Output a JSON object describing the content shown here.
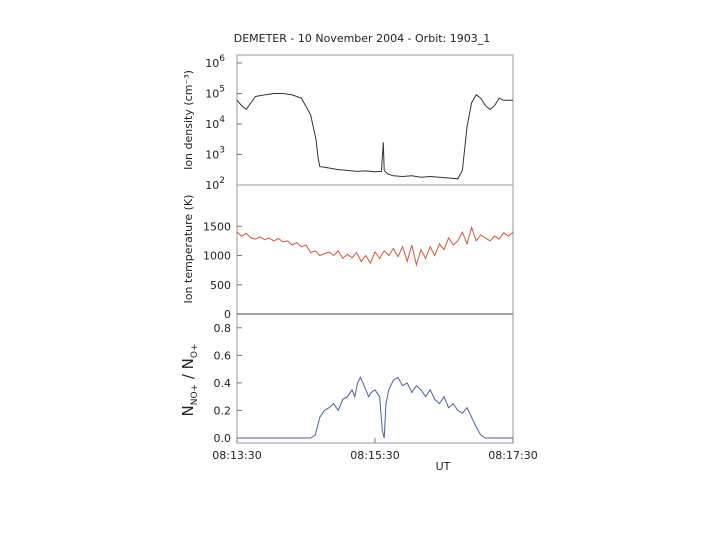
{
  "chart_data": [
    {
      "type": "line",
      "title": "DEMETER   - 10 November 2004 -   Orbit: 1903_1",
      "ylabel": "Ion density  (cm⁻³)",
      "yscale": "log",
      "ylim": [
        100,
        1000000
      ],
      "yticks": [
        {
          "value": 100,
          "base": "10",
          "exp": "2"
        },
        {
          "value": 1000,
          "base": "10",
          "exp": "3"
        },
        {
          "value": 10000,
          "base": "10",
          "exp": "4"
        },
        {
          "value": 100000,
          "base": "10",
          "exp": "5"
        },
        {
          "value": 1000000,
          "base": "10",
          "exp": "6"
        }
      ],
      "color": "#333333",
      "x": [
        0,
        5,
        10,
        20,
        30,
        40,
        50,
        60,
        70,
        80,
        86,
        88,
        90,
        95,
        100,
        110,
        120,
        130,
        140,
        150,
        157,
        159,
        160,
        162,
        164,
        170,
        180,
        190,
        200,
        210,
        220,
        230,
        240,
        245,
        250,
        255,
        260,
        265,
        270,
        275,
        280,
        285,
        290,
        300
      ],
      "y": [
        60000,
        40000,
        30000,
        80000,
        90000,
        100000,
        100000,
        90000,
        70000,
        20000,
        3000,
        800,
        400,
        380,
        360,
        320,
        300,
        280,
        290,
        270,
        280,
        2500,
        300,
        260,
        230,
        200,
        190,
        200,
        180,
        190,
        180,
        170,
        160,
        300,
        8000,
        50000,
        90000,
        70000,
        40000,
        30000,
        40000,
        70000,
        60000,
        60000
      ]
    },
    {
      "type": "line",
      "ylabel": "Ion temperature  (K)",
      "ylim": [
        0,
        2000
      ],
      "yticks": [
        0,
        500,
        1000,
        1500
      ],
      "color": "#d2583c",
      "x": [
        0,
        5,
        10,
        15,
        20,
        25,
        30,
        35,
        40,
        45,
        50,
        55,
        60,
        65,
        70,
        75,
        80,
        85,
        90,
        95,
        100,
        105,
        110,
        115,
        120,
        125,
        130,
        135,
        140,
        145,
        150,
        155,
        160,
        165,
        170,
        175,
        180,
        185,
        190,
        195,
        200,
        205,
        210,
        215,
        220,
        225,
        230,
        235,
        240,
        245,
        250,
        255,
        260,
        265,
        270,
        275,
        280,
        285,
        290,
        295,
        300
      ],
      "y": [
        1400,
        1330,
        1380,
        1300,
        1280,
        1320,
        1270,
        1300,
        1250,
        1290,
        1230,
        1250,
        1180,
        1220,
        1150,
        1180,
        1050,
        1080,
        1000,
        1030,
        1060,
        1000,
        1080,
        950,
        1020,
        960,
        1050,
        900,
        1000,
        870,
        1060,
        950,
        1080,
        1000,
        1120,
        980,
        1150,
        900,
        1180,
        840,
        1100,
        950,
        1150,
        1000,
        1200,
        1100,
        1300,
        1180,
        1250,
        1400,
        1200,
        1480,
        1250,
        1350,
        1300,
        1250,
        1330,
        1280,
        1390,
        1330,
        1400
      ]
    },
    {
      "type": "line",
      "ylabel": "N",
      "ylabel_sub1": "NO+",
      "ylabel_mid": " / N",
      "ylabel_sub2": "O+",
      "ylim": [
        0,
        0.9
      ],
      "yticks": [
        "0.0",
        "0.2",
        "0.4",
        "0.6",
        "0.8"
      ],
      "color": "#4a5fa8",
      "xlabel": "UT",
      "xticks": [
        {
          "value": 0,
          "label": "08:13:30"
        },
        {
          "value": 150,
          "label": "08:15:30"
        },
        {
          "value": 300,
          "label": "08:17:30"
        }
      ],
      "x": [
        0,
        80,
        85,
        90,
        95,
        100,
        105,
        110,
        115,
        120,
        125,
        128,
        131,
        134,
        137,
        140,
        143,
        146,
        150,
        155,
        158,
        160,
        162,
        165,
        170,
        175,
        180,
        185,
        190,
        195,
        200,
        205,
        210,
        215,
        220,
        225,
        230,
        235,
        240,
        245,
        250,
        255,
        260,
        265,
        270,
        300
      ],
      "y": [
        0,
        0,
        0.02,
        0.15,
        0.2,
        0.22,
        0.25,
        0.2,
        0.28,
        0.3,
        0.35,
        0.3,
        0.4,
        0.44,
        0.4,
        0.35,
        0.3,
        0.33,
        0.35,
        0.3,
        0.05,
        0.0,
        0.25,
        0.35,
        0.42,
        0.44,
        0.38,
        0.4,
        0.33,
        0.38,
        0.35,
        0.3,
        0.35,
        0.28,
        0.25,
        0.3,
        0.22,
        0.25,
        0.2,
        0.18,
        0.22,
        0.15,
        0.08,
        0.02,
        0,
        0
      ]
    }
  ]
}
